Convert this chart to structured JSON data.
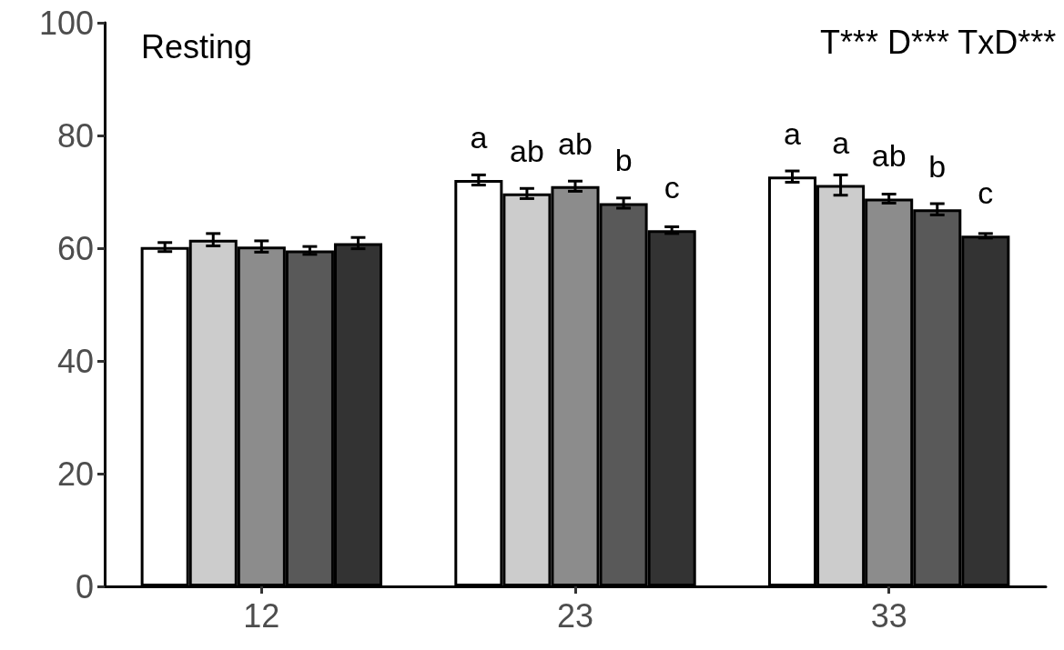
{
  "chart_data": {
    "type": "bar",
    "title": "Resting",
    "categories": [
      "12",
      "23",
      "33"
    ],
    "series": [
      {
        "color": "#ffffff",
        "values": [
          60.2,
          72.1,
          72.7
        ],
        "errors": [
          0.8,
          0.9,
          1.0
        ],
        "value_labels": [
          null,
          "a",
          "a"
        ]
      },
      {
        "color": "#cccccc",
        "values": [
          61.5,
          69.7,
          71.2
        ],
        "errors": [
          1.1,
          0.9,
          1.8
        ],
        "value_labels": [
          null,
          "ab",
          "a"
        ]
      },
      {
        "color": "#8c8c8c",
        "values": [
          60.3,
          71.0,
          68.8
        ],
        "errors": [
          1.0,
          0.9,
          0.8
        ],
        "value_labels": [
          null,
          "ab",
          "ab"
        ]
      },
      {
        "color": "#595959",
        "values": [
          59.6,
          68.0,
          66.9
        ],
        "errors": [
          0.7,
          0.9,
          1.0
        ],
        "value_labels": [
          null,
          "b",
          "b"
        ]
      },
      {
        "color": "#333333",
        "values": [
          60.9,
          63.2,
          62.2
        ],
        "errors": [
          1.0,
          0.6,
          0.4
        ],
        "value_labels": [
          null,
          "c",
          "c"
        ]
      }
    ],
    "ylim": [
      0,
      100
    ],
    "yticks": [
      0,
      20,
      40,
      60,
      80,
      100
    ],
    "grid": false,
    "annotations": [
      "T*** D*** TxD***"
    ]
  }
}
